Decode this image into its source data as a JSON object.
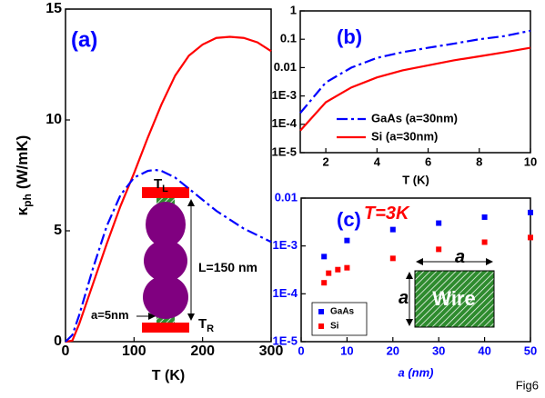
{
  "figure_label": "Fig6",
  "chart_data": [
    {
      "type": "line",
      "panel_label": "(a)",
      "xlabel": "T (K)",
      "ylabel": {
        "symbol": "κ",
        "subscript": "ph",
        "unit": "(W/mK)"
      },
      "xlim": [
        0,
        300
      ],
      "ylim": [
        0,
        15
      ],
      "xticks": [
        0,
        100,
        200,
        300
      ],
      "yticks": [
        0,
        5,
        10,
        15
      ],
      "series": [
        {
          "color": "#ff0000",
          "linestyle": "solid",
          "x": [
            0,
            10,
            20,
            40,
            60,
            80,
            100,
            120,
            140,
            160,
            180,
            200,
            220,
            240,
            260,
            280,
            300
          ],
          "values": [
            0,
            0.05,
            0.8,
            2.6,
            4.4,
            6.1,
            7.6,
            9.2,
            10.7,
            12.0,
            12.9,
            13.4,
            13.7,
            13.75,
            13.7,
            13.5,
            13.1
          ]
        },
        {
          "color": "#0000ff",
          "linestyle": "dashdot",
          "x": [
            0,
            10,
            20,
            40,
            60,
            80,
            100,
            120,
            130,
            140,
            160,
            180,
            200,
            220,
            240,
            260,
            280,
            300
          ],
          "values": [
            0,
            0.3,
            1.2,
            3.3,
            5.2,
            6.6,
            7.4,
            7.7,
            7.75,
            7.7,
            7.4,
            6.9,
            6.4,
            5.9,
            5.5,
            5.1,
            4.8,
            4.5
          ]
        }
      ],
      "annotations": [
        {
          "text": "T",
          "sub": "L"
        },
        {
          "text": "L=150 nm"
        },
        {
          "text": "a=5nm"
        },
        {
          "text": "T",
          "sub": "R"
        }
      ]
    },
    {
      "type": "line",
      "panel_label": "(b)",
      "xlabel": "T (K)",
      "log_y": true,
      "legend": "lower-left",
      "xlim": [
        1,
        10
      ],
      "ylim": [
        1e-05,
        1
      ],
      "xticks": [
        2,
        4,
        6,
        8,
        10
      ],
      "yticks": [
        {
          "value": 1e-05,
          "label": "1E-5"
        },
        {
          "value": 0.0001,
          "label": "1E-4"
        },
        {
          "value": 0.001,
          "label": "1E-3"
        },
        0.01,
        0.1,
        1
      ],
      "series": [
        {
          "name": "GaAs (a=30nm)",
          "color": "#0000ff",
          "linestyle": "dashdot",
          "x": [
            1,
            2,
            3,
            4,
            5,
            6,
            7,
            8,
            9,
            10
          ],
          "values": [
            0.00025,
            0.003,
            0.01,
            0.022,
            0.035,
            0.05,
            0.07,
            0.1,
            0.13,
            0.2
          ]
        },
        {
          "name": "Si (a=30nm)",
          "color": "#ff0000",
          "linestyle": "solid",
          "x": [
            1,
            2,
            3,
            4,
            5,
            6,
            7,
            8,
            9,
            10
          ],
          "values": [
            6e-05,
            0.0006,
            0.002,
            0.0045,
            0.008,
            0.012,
            0.018,
            0.025,
            0.035,
            0.05
          ]
        }
      ]
    },
    {
      "type": "scatter",
      "panel_label": "(c)",
      "xlabel": "a (nm)",
      "log_y": true,
      "legend": "lower-left",
      "xlim": [
        0,
        50
      ],
      "ylim": [
        1e-05,
        0.01
      ],
      "xticks": [
        0,
        10,
        20,
        30,
        40,
        50
      ],
      "yticks": [
        {
          "value": 1e-05,
          "label": "1E-5"
        },
        {
          "value": 0.0001,
          "label": "1E-4"
        },
        {
          "value": 0.001,
          "label": "1E-3"
        },
        0.01
      ],
      "series": [
        {
          "name": "GaAs",
          "color": "#0000ff",
          "x": [
            5,
            10,
            20,
            30,
            40,
            50
          ],
          "values": [
            0.0006,
            0.0013,
            0.0022,
            0.003,
            0.004,
            0.005
          ]
        },
        {
          "name": "Si",
          "color": "#ff0000",
          "x": [
            5,
            6,
            8,
            10,
            20,
            30,
            40,
            50
          ],
          "values": [
            0.00017,
            0.00027,
            0.00032,
            0.00035,
            0.00055,
            0.00085,
            0.0012,
            0.0015
          ]
        }
      ],
      "annotations": [
        {
          "text": "T=3K"
        },
        {
          "text": "Wire"
        },
        {
          "text": "a"
        },
        {
          "text": "a"
        }
      ]
    }
  ]
}
